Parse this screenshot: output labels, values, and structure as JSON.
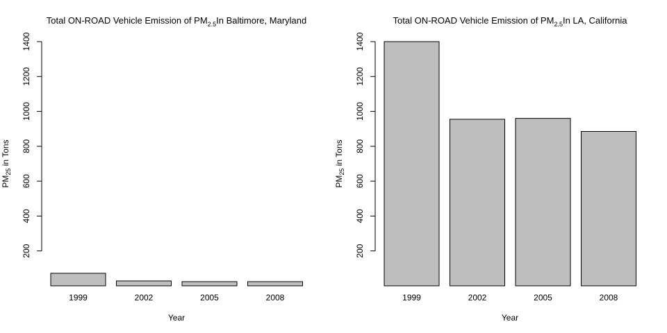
{
  "chart_data": [
    {
      "type": "bar",
      "title": {
        "main": "Total ON-ROAD Vehicle Emission of PM",
        "sub": "2.5",
        "rest": "In Baltimore, Maryland"
      },
      "xlabel": "Year",
      "ylabel": {
        "main": "PM",
        "sub": "25",
        "rest": " in Tons"
      },
      "categories": [
        "1999",
        "2002",
        "2005",
        "2008"
      ],
      "values": [
        72,
        28,
        24,
        24
      ],
      "yticks": [
        "200",
        "400",
        "600",
        "800",
        "1000",
        "1200",
        "1400"
      ],
      "ylim": [
        0,
        1400
      ],
      "bar_color": "#bebebe",
      "grid": false
    },
    {
      "type": "bar",
      "title": {
        "main": "Total ON-ROAD Vehicle Emission of PM",
        "sub": "2.5",
        "rest": "In LA, California"
      },
      "xlabel": "Year",
      "ylabel": {
        "main": "PM",
        "sub": "25",
        "rest": " in Tons"
      },
      "categories": [
        "1999",
        "2002",
        "2005",
        "2008"
      ],
      "values": [
        1400,
        955,
        960,
        885
      ],
      "yticks": [
        "200",
        "400",
        "600",
        "800",
        "1000",
        "1200",
        "1400"
      ],
      "ylim": [
        0,
        1400
      ],
      "bar_color": "#bebebe",
      "grid": false
    }
  ]
}
